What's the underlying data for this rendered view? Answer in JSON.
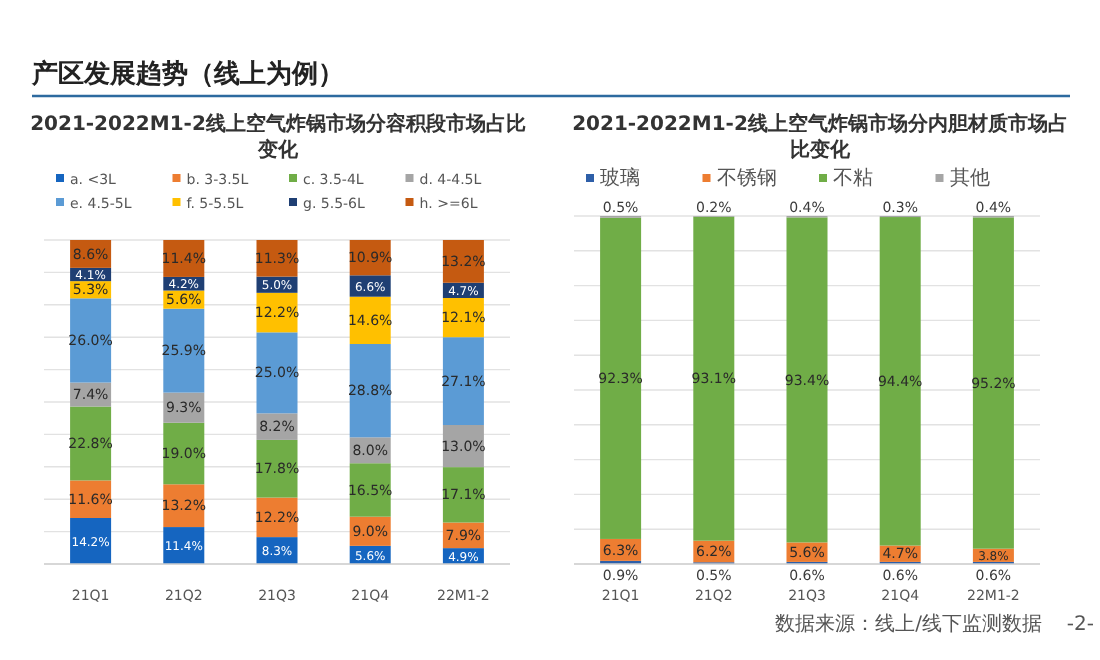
{
  "chart_data": [
    {
      "type": "bar",
      "title": "2021-2022M1-2线上空气炸锅市场分容积段市场占比变化",
      "categories": [
        "21Q1",
        "21Q2",
        "21Q3",
        "21Q4",
        "22M1-2"
      ],
      "stacked": true,
      "grid": "y",
      "tick_labels": "x",
      "legend": "top",
      "annotations": [
        "产区发展趋势（线上为例）"
      ],
      "series": [
        {
          "name": "a. <3L",
          "color": "#1565c0",
          "values": [
            14.2,
            11.4,
            8.3,
            5.6,
            4.9
          ],
          "value_labels": [
            "14.2%",
            "11.4%",
            "8.3%",
            "5.6%",
            "4.9%"
          ]
        },
        {
          "name": "b. 3-3.5L",
          "color": "#ed7d31",
          "values": [
            11.6,
            13.2,
            12.2,
            9.0,
            7.9
          ],
          "value_labels": [
            "11.6%",
            "13.2%",
            "12.2%",
            "9.0%",
            "7.9%"
          ]
        },
        {
          "name": "c. 3.5-4L",
          "color": "#70ad47",
          "values": [
            22.8,
            19.0,
            17.8,
            16.5,
            17.1
          ],
          "value_labels": [
            "22.8%",
            "19.0%",
            "17.8%",
            "16.5%",
            "17.1%"
          ]
        },
        {
          "name": "d. 4-4.5L",
          "color": "#a5a5a5",
          "values": [
            7.4,
            9.3,
            8.2,
            8.0,
            13.0
          ],
          "value_labels": [
            "7.4%",
            "9.3%",
            "8.2%",
            "8.0%",
            "13.0%"
          ]
        },
        {
          "name": "e. 4.5-5L",
          "color": "#5b9bd5",
          "values": [
            26.0,
            25.9,
            25.0,
            28.8,
            27.1
          ],
          "value_labels": [
            "26.0%",
            "25.9%",
            "25.0%",
            "28.8%",
            "27.1%"
          ]
        },
        {
          "name": "f. 5-5.5L",
          "color": "#ffc000",
          "values": [
            5.3,
            5.6,
            12.2,
            14.6,
            12.1
          ],
          "value_labels": [
            "5.3%",
            "5.6%",
            "12.2%",
            "14.6%",
            "12.1%"
          ]
        },
        {
          "name": "g. 5.5-6L",
          "color": "#1f3f73",
          "values": [
            4.1,
            4.2,
            5.0,
            6.6,
            4.7
          ],
          "value_labels": [
            "4.1%",
            "4.2%",
            "5.0%",
            "6.6%",
            "4.7%"
          ]
        },
        {
          "name": "h. >=6L",
          "color": "#c55a11",
          "values": [
            8.6,
            11.4,
            11.3,
            10.9,
            13.2
          ],
          "value_labels": [
            "8.6%",
            "11.4%",
            "11.3%",
            "10.9%",
            "13.2%"
          ]
        }
      ]
    },
    {
      "type": "bar",
      "title": "2021-2022M1-2线上空气炸锅市场分内胆材质市场占比变化",
      "categories": [
        "21Q1",
        "21Q2",
        "21Q3",
        "21Q4",
        "22M1-2"
      ],
      "stacked": true,
      "grid": "y",
      "tick_labels": "x",
      "legend": "top",
      "annotations": [
        "数据来源：线上/线下监测数据",
        "-2-"
      ],
      "series": [
        {
          "name": "玻璃",
          "color": "#2e5fa8",
          "values": [
            0.9,
            0.5,
            0.6,
            0.6,
            0.6
          ],
          "value_labels": [
            "0.9%",
            "0.5%",
            "0.6%",
            "0.6%",
            "0.6%"
          ]
        },
        {
          "name": "不锈钢",
          "color": "#ed7d31",
          "values": [
            6.3,
            6.2,
            5.6,
            4.7,
            3.8
          ],
          "value_labels": [
            "6.3%",
            "6.2%",
            "5.6%",
            "4.7%",
            "3.8%"
          ]
        },
        {
          "name": "不粘",
          "color": "#70ad47",
          "values": [
            92.3,
            93.1,
            93.4,
            94.4,
            95.2
          ],
          "value_labels": [
            "92.3%",
            "93.1%",
            "93.4%",
            "94.4%",
            "95.2%"
          ]
        },
        {
          "name": "其他",
          "color": "#a5a5a5",
          "values": [
            0.5,
            0.2,
            0.4,
            0.3,
            0.4
          ],
          "value_labels": [
            "0.5%",
            "0.2%",
            "0.4%",
            "0.3%",
            "0.4%"
          ]
        }
      ]
    }
  ]
}
